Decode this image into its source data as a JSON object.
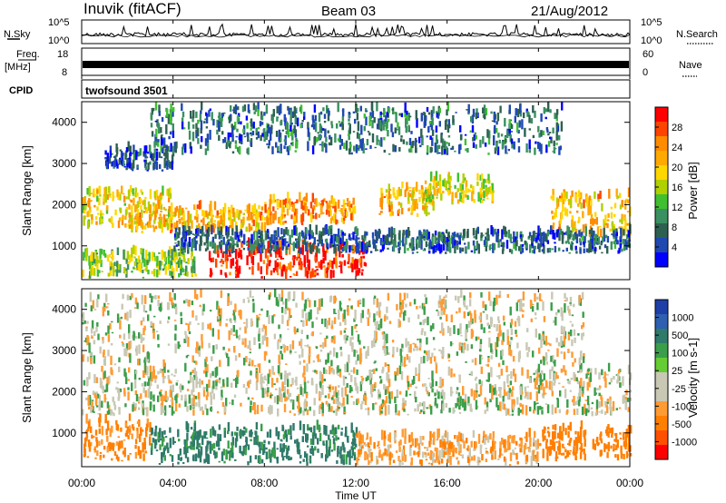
{
  "header": {
    "station": "Inuvik (fitACF)",
    "beam": "Beam 03",
    "date": "21/Aug/2012"
  },
  "top_panels": {
    "nsky_label": "N.Sky",
    "nsky_ticks": [
      "10^5",
      "10^0"
    ],
    "nsearch_label": "N.Search",
    "nsearch_ticks": [
      "10^5",
      "10^0"
    ],
    "freq_label": "Freq.",
    "freq_unit": "[MHz]",
    "freq_ticks": [
      "18",
      "8"
    ],
    "nave_label": "Nave",
    "nave_ticks": [
      "60",
      "0"
    ],
    "cpid_label": "CPID",
    "cpid_value": "twofsound 3501"
  },
  "x_axis": {
    "label": "Time UT",
    "ticks": [
      "00:00",
      "04:00",
      "08:00",
      "12:00",
      "16:00",
      "20:00",
      "00:00"
    ]
  },
  "y_axis": {
    "label": "Slant Range [km]",
    "ticks": [
      "1000",
      "2000",
      "3000",
      "4000"
    ]
  },
  "power_colorbar": {
    "label": "Power [dB]",
    "ticks": [
      "28",
      "24",
      "20",
      "16",
      "12",
      "8",
      "4"
    ],
    "colors": [
      "#ff0000",
      "#ff4400",
      "#ff8c00",
      "#ffaa00",
      "#ffd700",
      "#b0d000",
      "#40c030",
      "#3a9060",
      "#2e6050",
      "#1f48b0",
      "#0000ff"
    ]
  },
  "velocity_colorbar": {
    "label": "Velocity [m s-1]",
    "ticks": [
      "1000",
      "500",
      "100",
      "25",
      "-25",
      "-100",
      "-500",
      "-1000"
    ],
    "colors": [
      "#1e3ea8",
      "#2e5fb0",
      "#2f7a6a",
      "#3b9e4a",
      "#66cc33",
      "#c8c8b4",
      "#c8c8b4",
      "#ff9b33",
      "#ff7f00",
      "#ff5000",
      "#ff0000"
    ]
  },
  "chart_data": [
    {
      "type": "heatmap",
      "title": "Power [dB]",
      "xlabel": "Time UT",
      "ylabel": "Slant Range [km]",
      "xlim": [
        "00:00",
        "24:00"
      ],
      "ylim": [
        180,
        4500
      ],
      "zlim": [
        0,
        30
      ],
      "bands": [
        {
          "t0": 5.5,
          "t1": 12.5,
          "r0": 200,
          "r1": 1000,
          "value": 28
        },
        {
          "t0": 0,
          "t1": 5,
          "r0": 200,
          "r1": 800,
          "value": 14
        },
        {
          "t0": 0,
          "t1": 4,
          "r0": 1400,
          "r1": 2300,
          "value": 18
        },
        {
          "t0": 2,
          "t1": 8,
          "r0": 1300,
          "r1": 1900,
          "value": 20
        },
        {
          "t0": 8,
          "t1": 12,
          "r0": 1500,
          "r1": 2100,
          "value": 22
        },
        {
          "t0": 13,
          "t1": 15.5,
          "r0": 1700,
          "r1": 2400,
          "value": 20
        },
        {
          "t0": 15,
          "t1": 18,
          "r0": 2000,
          "r1": 2600,
          "value": 16
        },
        {
          "t0": 20.5,
          "t1": 24,
          "r0": 1200,
          "r1": 2200,
          "value": 20
        },
        {
          "t0": 1,
          "t1": 4,
          "r0": 2800,
          "r1": 3300,
          "value": 5
        },
        {
          "t0": 4,
          "t1": 24,
          "r0": 800,
          "r1": 1300,
          "value": 6
        },
        {
          "t0": 3,
          "t1": 21,
          "r0": 3200,
          "r1": 4300,
          "value": 7
        }
      ]
    },
    {
      "type": "heatmap",
      "title": "Velocity [m s-1]",
      "xlabel": "Time UT",
      "ylabel": "Slant Range [km]",
      "xlim": [
        "00:00",
        "24:00"
      ],
      "ylim": [
        180,
        4500
      ],
      "zlim": [
        -1000,
        1000
      ],
      "bands": [
        {
          "t0": 0,
          "t1": 24,
          "r0": 1400,
          "r1": 2500,
          "value": 0
        },
        {
          "t0": 0,
          "t1": 3,
          "r0": 300,
          "r1": 1300,
          "value": -200
        },
        {
          "t0": 3,
          "t1": 12,
          "r0": 200,
          "r1": 1100,
          "value": 200
        },
        {
          "t0": 12,
          "t1": 20,
          "r0": 200,
          "r1": 900,
          "value": -100
        },
        {
          "t0": 20,
          "t1": 24,
          "r0": 300,
          "r1": 1100,
          "value": -400
        },
        {
          "t0": 0,
          "t1": 22,
          "r0": 2600,
          "r1": 4300,
          "value": 0
        }
      ]
    }
  ]
}
